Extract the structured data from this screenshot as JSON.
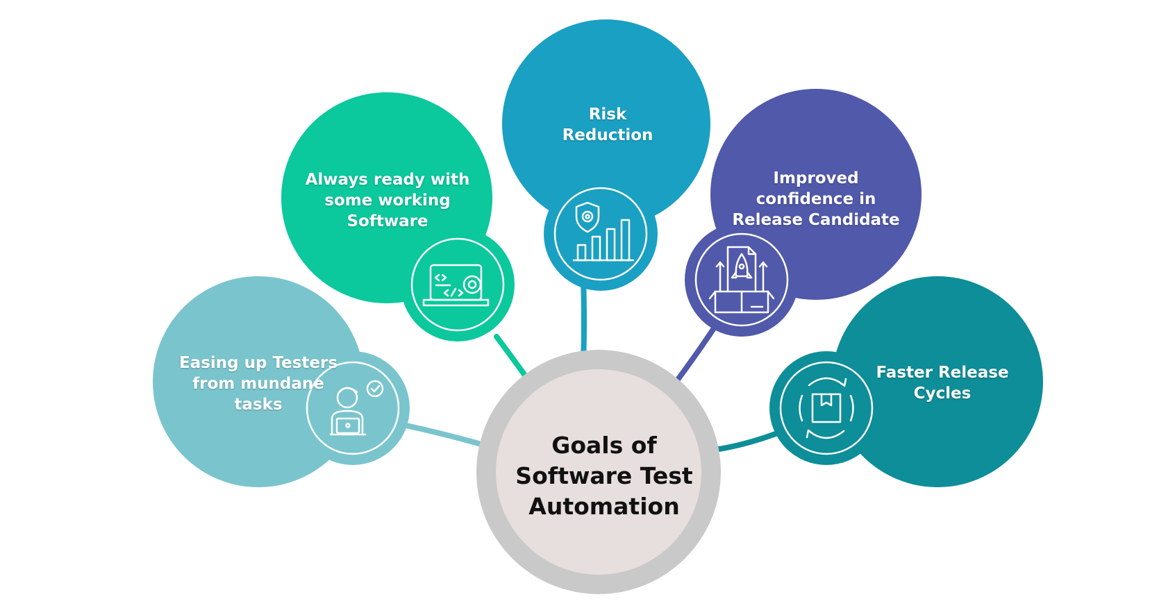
{
  "center": {
    "title_lines": [
      "Goals of",
      "Software Test",
      "Automation"
    ]
  },
  "goals": [
    {
      "id": "easing-testers",
      "lines": [
        "Easing up Testers",
        "from mundane",
        "tasks"
      ],
      "icon": "tester-with-laptop-checkmark-icon",
      "color": "#7AC5CD"
    },
    {
      "id": "working-software",
      "lines": [
        "Always ready with",
        "some working",
        "Software"
      ],
      "icon": "laptop-code-gear-icon",
      "color": "#0BC89D"
    },
    {
      "id": "risk-reduction",
      "lines": [
        "Risk",
        "Reduction"
      ],
      "icon": "shield-gear-bar-chart-icon",
      "color": "#1AA0C2"
    },
    {
      "id": "release-confidence",
      "lines": [
        "Improved",
        "confidence in",
        "Release Candidate"
      ],
      "icon": "rocket-box-launch-icon",
      "color": "#5159AB"
    },
    {
      "id": "faster-release",
      "lines": [
        "Faster Release",
        "Cycles"
      ],
      "icon": "package-cycle-arrows-icon",
      "color": "#0D8E98"
    }
  ],
  "colors": {
    "center_ring": "#C9C9C9",
    "center_fill": "#E7DEDE",
    "icon_stroke": "#ffffff"
  }
}
